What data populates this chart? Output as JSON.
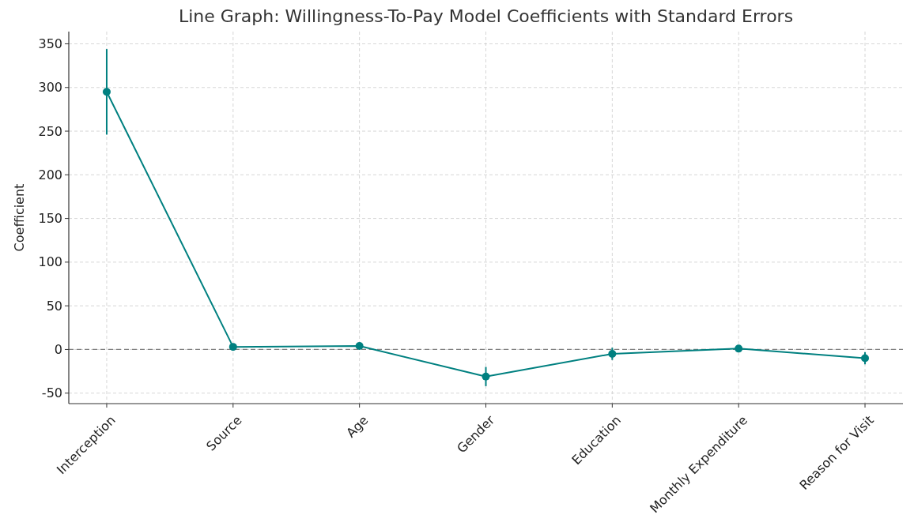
{
  "chart_data": {
    "type": "line",
    "title": "Line Graph: Willingness-To-Pay Model Coefficients with Standard Errors",
    "ylabel": "Coefficient",
    "categories": [
      "Interception",
      "Source",
      "Age",
      "Gender",
      "Education",
      "Monthly Expenditure",
      "Reason for Visit"
    ],
    "series": [
      {
        "color": "#008080",
        "values": [
          295,
          3,
          4,
          -31,
          -5,
          1,
          -10
        ],
        "errors": [
          49,
          3,
          2,
          11,
          7,
          2,
          7
        ]
      }
    ],
    "ylim": [
      -62,
      364
    ],
    "yticks": [
      -50,
      0,
      50,
      100,
      150,
      200,
      250,
      300,
      350
    ],
    "grid": true,
    "marker": "circle",
    "line_style": "solid",
    "ref_lines": [
      {
        "axis": "y",
        "value": 0,
        "color": "#808080",
        "line_style": "dashed"
      }
    ]
  }
}
